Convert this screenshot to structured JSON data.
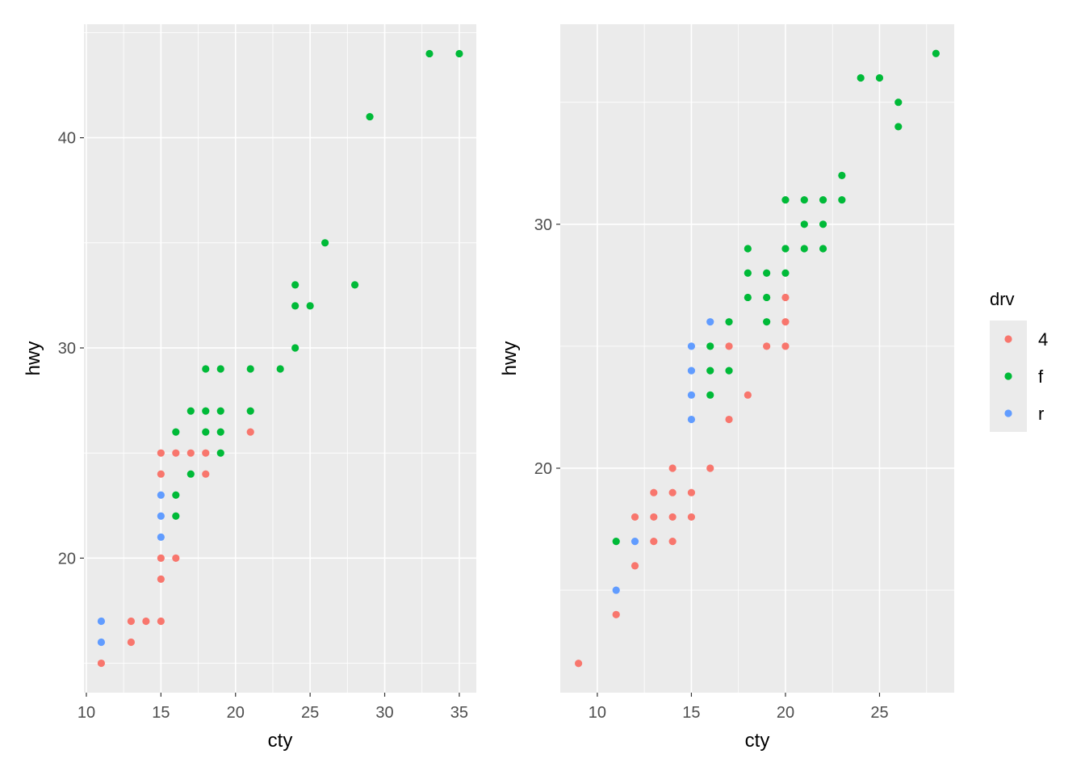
{
  "colors": {
    "panel_bg": "#EBEBEB",
    "grid": "#FFFFFF",
    "4": "#F8766D",
    "f": "#00BA38",
    "r": "#619CFF"
  },
  "legend": {
    "title": "drv",
    "entries": [
      "4",
      "f",
      "r"
    ]
  },
  "chart_data": [
    {
      "type": "scatter",
      "title": "",
      "xlabel": "cty",
      "ylabel": "hwy",
      "xlim": [
        9.84,
        36.14
      ],
      "ylim": [
        13.6,
        45.4
      ],
      "xticks": [
        10,
        15,
        20,
        25,
        30,
        35
      ],
      "yticks": [
        20,
        30,
        40
      ],
      "grid": true,
      "series": [
        {
          "name": "4",
          "points": [
            [
              21,
              26
            ],
            [
              15,
              25
            ],
            [
              16,
              25
            ],
            [
              17,
              25
            ],
            [
              18,
              25
            ],
            [
              15,
              24
            ],
            [
              18,
              24
            ],
            [
              15,
              20
            ],
            [
              16,
              20
            ],
            [
              15,
              19
            ],
            [
              13,
              17
            ],
            [
              14,
              17
            ],
            [
              15,
              17
            ],
            [
              13,
              16
            ],
            [
              11,
              15
            ]
          ]
        },
        {
          "name": "f",
          "points": [
            [
              33,
              44
            ],
            [
              35,
              44
            ],
            [
              29,
              41
            ],
            [
              26,
              35
            ],
            [
              24,
              33
            ],
            [
              28,
              33
            ],
            [
              24,
              32
            ],
            [
              25,
              32
            ],
            [
              24,
              30
            ],
            [
              18,
              29
            ],
            [
              19,
              29
            ],
            [
              21,
              29
            ],
            [
              23,
              29
            ],
            [
              17,
              27
            ],
            [
              18,
              27
            ],
            [
              19,
              27
            ],
            [
              21,
              27
            ],
            [
              16,
              26
            ],
            [
              18,
              26
            ],
            [
              19,
              26
            ],
            [
              19,
              25
            ],
            [
              17,
              24
            ],
            [
              16,
              23
            ],
            [
              16,
              22
            ]
          ]
        },
        {
          "name": "r",
          "points": [
            [
              15,
              23
            ],
            [
              15,
              22
            ],
            [
              15,
              21
            ],
            [
              11,
              17
            ],
            [
              11,
              16
            ]
          ]
        }
      ]
    },
    {
      "type": "scatter",
      "title": "",
      "xlabel": "cty",
      "ylabel": "hwy",
      "xlim": [
        8.03,
        28.97
      ],
      "ylim": [
        10.8,
        38.2
      ],
      "xticks": [
        10,
        15,
        20,
        25
      ],
      "yticks": [
        20,
        30
      ],
      "grid": true,
      "legend_position": "right",
      "series": [
        {
          "name": "4",
          "points": [
            [
              20,
              27
            ],
            [
              20,
              26
            ],
            [
              17,
              25
            ],
            [
              19,
              25
            ],
            [
              20,
              25
            ],
            [
              18,
              23
            ],
            [
              17,
              22
            ],
            [
              14,
              20
            ],
            [
              16,
              20
            ],
            [
              13,
              19
            ],
            [
              14,
              19
            ],
            [
              15,
              19
            ],
            [
              12,
              18
            ],
            [
              13,
              18
            ],
            [
              14,
              18
            ],
            [
              15,
              18
            ],
            [
              13,
              17
            ],
            [
              14,
              17
            ],
            [
              12,
              16
            ],
            [
              11,
              14
            ],
            [
              9,
              12
            ]
          ]
        },
        {
          "name": "f",
          "points": [
            [
              28,
              37
            ],
            [
              24,
              36
            ],
            [
              25,
              36
            ],
            [
              26,
              35
            ],
            [
              26,
              34
            ],
            [
              23,
              32
            ],
            [
              20,
              31
            ],
            [
              21,
              31
            ],
            [
              22,
              31
            ],
            [
              23,
              31
            ],
            [
              21,
              30
            ],
            [
              22,
              30
            ],
            [
              18,
              29
            ],
            [
              20,
              29
            ],
            [
              21,
              29
            ],
            [
              22,
              29
            ],
            [
              18,
              28
            ],
            [
              19,
              28
            ],
            [
              20,
              28
            ],
            [
              18,
              27
            ],
            [
              19,
              27
            ],
            [
              17,
              26
            ],
            [
              19,
              26
            ],
            [
              16,
              25
            ],
            [
              16,
              24
            ],
            [
              17,
              24
            ],
            [
              16,
              23
            ],
            [
              11,
              17
            ]
          ]
        },
        {
          "name": "r",
          "points": [
            [
              16,
              26
            ],
            [
              15,
              25
            ],
            [
              15,
              24
            ],
            [
              15,
              23
            ],
            [
              15,
              22
            ],
            [
              12,
              17
            ],
            [
              11,
              15
            ]
          ]
        }
      ]
    }
  ]
}
